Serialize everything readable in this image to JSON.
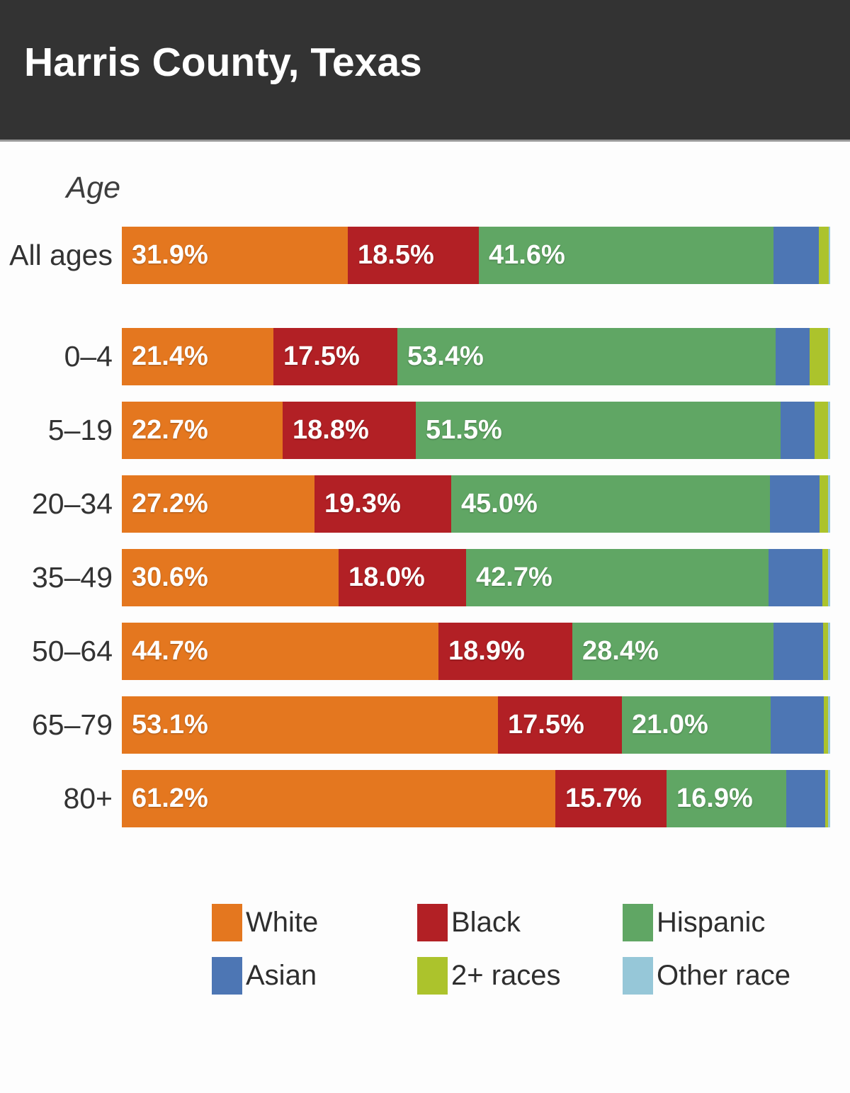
{
  "title": "Harris County, Texas",
  "age_axis_label": "Age",
  "colors": {
    "header_bg": "#333333",
    "page_bg": "#fdfdfd",
    "row_label_text": "#333333",
    "bar_value_text": "#ffffff"
  },
  "chart_data": {
    "type": "bar",
    "stacked": true,
    "orientation": "horizontal",
    "unit": "%",
    "xlim": [
      0,
      100
    ],
    "title": "Harris County, Texas",
    "ylabel": "Age",
    "legend_position": "bottom",
    "series_names": [
      "White",
      "Black",
      "Hispanic",
      "Asian",
      "2+ races",
      "Other race"
    ],
    "series_colors": [
      "#e4771f",
      "#b22025",
      "#60a664",
      "#4d76b4",
      "#acc32c",
      "#96c7d8"
    ],
    "labeled_series_count": 3,
    "categories": [
      "All ages",
      "0–4",
      "5–19",
      "20–34",
      "35–49",
      "50–64",
      "65–79",
      "80+"
    ],
    "rows": [
      {
        "category": "All ages",
        "values": [
          31.9,
          18.5,
          41.6,
          6.4,
          1.4,
          0.2
        ]
      },
      {
        "category": "0–4",
        "values": [
          21.4,
          17.5,
          53.4,
          4.8,
          2.6,
          0.3
        ]
      },
      {
        "category": "5–19",
        "values": [
          22.7,
          18.8,
          51.5,
          4.8,
          1.9,
          0.3
        ]
      },
      {
        "category": "20–34",
        "values": [
          27.2,
          19.3,
          45.0,
          7.0,
          1.2,
          0.3
        ]
      },
      {
        "category": "35–49",
        "values": [
          30.6,
          18.0,
          42.7,
          7.6,
          0.8,
          0.3
        ]
      },
      {
        "category": "50–64",
        "values": [
          44.7,
          18.9,
          28.4,
          7.0,
          0.7,
          0.3
        ]
      },
      {
        "category": "65–79",
        "values": [
          53.1,
          17.5,
          21.0,
          7.5,
          0.6,
          0.3
        ]
      },
      {
        "category": "80+",
        "values": [
          61.2,
          15.7,
          16.9,
          5.5,
          0.4,
          0.3
        ]
      }
    ],
    "unlabeled_note": "Asian, 2+ races and Other race segments carry no text labels in the chart; their values are estimated from segment widths"
  },
  "legend": {
    "items": [
      {
        "label": "White",
        "color": "#e4771f"
      },
      {
        "label": "Black",
        "color": "#b22025"
      },
      {
        "label": "Hispanic",
        "color": "#60a664"
      },
      {
        "label": "Asian",
        "color": "#4d76b4"
      },
      {
        "label": "2+ races",
        "color": "#acc32c"
      },
      {
        "label": "Other race",
        "color": "#96c7d8"
      }
    ]
  }
}
